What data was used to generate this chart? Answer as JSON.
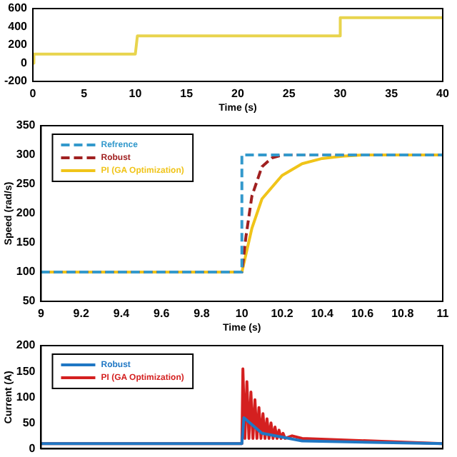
{
  "chart_data": [
    {
      "type": "line",
      "xlabel": "Time (s)",
      "x": [
        0,
        0.1,
        10,
        10.2,
        30,
        30,
        40
      ],
      "xlim": [
        0,
        40
      ],
      "xticks": [
        0,
        5,
        10,
        15,
        20,
        25,
        30,
        35,
        40
      ],
      "ylim": [
        -200,
        600
      ],
      "yticks": [
        -200,
        0,
        200,
        400,
        600
      ],
      "marker": "none",
      "grid": false,
      "legend": false,
      "series": [
        {
          "color": "#e8d44d",
          "values": [
            0,
            100,
            100,
            300,
            300,
            500,
            500
          ]
        }
      ]
    },
    {
      "type": "line",
      "xlabel": "Time (s)",
      "ylabel": "Speed (rad/s)",
      "xlim": [
        9,
        11
      ],
      "xticks": [
        9,
        9.2,
        9.4,
        9.6,
        9.8,
        10,
        10.2,
        10.4,
        10.6,
        10.8,
        11
      ],
      "ylim": [
        50,
        350
      ],
      "yticks": [
        50,
        100,
        150,
        200,
        250,
        300,
        350
      ],
      "marker": "none",
      "grid": false,
      "legend": "top left",
      "series": [
        {
          "name": "Refrence",
          "color": "#3399cc",
          "line_style": "dashed",
          "x": [
            9,
            10,
            10,
            11
          ],
          "values": [
            100,
            100,
            300,
            300
          ]
        },
        {
          "name": "Robust",
          "color": "#a02020",
          "line_style": "dashed",
          "x": [
            9,
            10,
            10.02,
            10.05,
            10.1,
            10.15,
            10.2,
            11
          ],
          "values": [
            100,
            100,
            160,
            230,
            280,
            295,
            300,
            300
          ]
        },
        {
          "name": "PI (GA Optimization)",
          "color": "#f0c419",
          "x": [
            9,
            10,
            10.05,
            10.1,
            10.2,
            10.3,
            10.4,
            10.5,
            10.6,
            11
          ],
          "values": [
            100,
            100,
            175,
            225,
            265,
            285,
            294,
            298,
            300,
            300
          ]
        }
      ]
    },
    {
      "type": "line",
      "ylabel": "Current (A)",
      "xlim": [
        9,
        11
      ],
      "ylim": [
        0,
        200
      ],
      "yticks": [
        0,
        50,
        100,
        150,
        200
      ],
      "tick_labels": "y",
      "marker": "none",
      "grid": false,
      "legend": "top left",
      "series": [
        {
          "name": "Robust",
          "color": "#1f77c4",
          "x": [
            9,
            10,
            10.01,
            10.1,
            10.3,
            11
          ],
          "values": [
            10,
            10,
            60,
            30,
            15,
            10
          ]
        },
        {
          "name": "PI (GA Optimization)",
          "color": "#d42020",
          "x": [
            9,
            10,
            10.005,
            10.015,
            10.025,
            10.035,
            10.045,
            10.055,
            10.065,
            10.075,
            10.085,
            10.095,
            10.105,
            10.115,
            10.125,
            10.135,
            10.145,
            10.155,
            10.165,
            10.175,
            10.185,
            10.195,
            10.205,
            10.215,
            10.25,
            10.3,
            11
          ],
          "values": [
            10,
            10,
            155,
            20,
            130,
            20,
            110,
            20,
            95,
            20,
            80,
            20,
            68,
            20,
            58,
            20,
            50,
            20,
            42,
            20,
            36,
            20,
            30,
            20,
            25,
            20,
            10
          ]
        }
      ]
    }
  ]
}
